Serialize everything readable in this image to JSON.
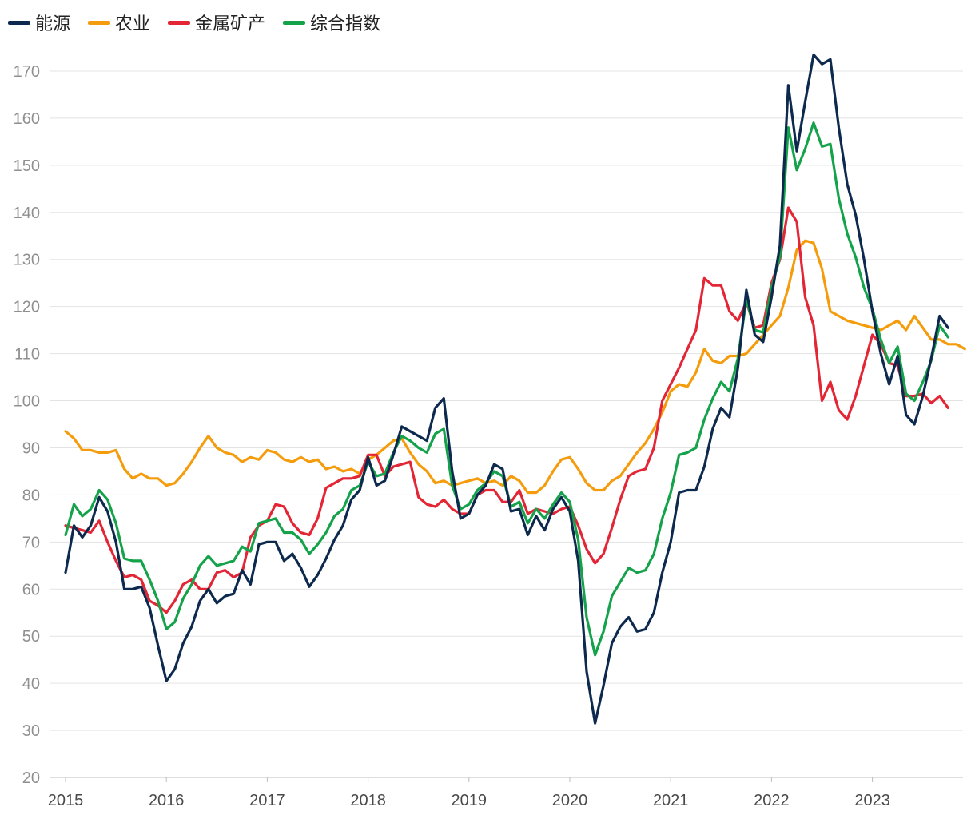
{
  "chart_data": {
    "type": "line",
    "title": "",
    "xlabel": "",
    "ylabel": "",
    "ylim": [
      20,
      175
    ],
    "yticks": [
      20,
      30,
      40,
      50,
      60,
      70,
      80,
      90,
      100,
      110,
      120,
      130,
      140,
      150,
      160,
      170
    ],
    "xticks": [
      "2015",
      "2016",
      "2017",
      "2018",
      "2019",
      "2020",
      "2021",
      "2022",
      "2023"
    ],
    "xstart": 2015,
    "points_per_year": 12,
    "grid": true,
    "legend_position": "top-left",
    "series": [
      {
        "name": "能源",
        "color": "#0d2a4e",
        "values": [
          63.5,
          73.5,
          71,
          73.5,
          79.5,
          76.5,
          70,
          60,
          60,
          60.5,
          56,
          48,
          40.5,
          43,
          48.5,
          52,
          57.5,
          60,
          57,
          58.5,
          59,
          64,
          61,
          69.5,
          70,
          70,
          66,
          67.5,
          64.5,
          60.5,
          63,
          66.5,
          70.5,
          73.5,
          79,
          81,
          88,
          82,
          83,
          88.5,
          94.5,
          93.5,
          92.5,
          91.5,
          98.5,
          100.5,
          85,
          75,
          76,
          80,
          82,
          86.5,
          85.5,
          76.5,
          77,
          71.5,
          75.5,
          72.5,
          77,
          79.5,
          76.5,
          66,
          42.5,
          31.5,
          39.5,
          48.5,
          52,
          54,
          51,
          51.5,
          55,
          63.5,
          70,
          80.5,
          81,
          81,
          86,
          94,
          98.5,
          96.5,
          107,
          123.5,
          114,
          112.5,
          122,
          133,
          167,
          153,
          163.5,
          173.5,
          171.5,
          172.5,
          158,
          146,
          139.5,
          130,
          119,
          110,
          103.5,
          109.5,
          97,
          95,
          101,
          109,
          118,
          115.5
        ]
      },
      {
        "name": "农业",
        "color": "#f59c0c",
        "values": [
          93.5,
          92,
          89.5,
          89.5,
          89,
          89,
          89.5,
          85.5,
          83.5,
          84.5,
          83.5,
          83.5,
          82,
          82.5,
          84.5,
          87,
          90,
          92.5,
          90,
          89,
          88.5,
          87,
          88,
          87.5,
          89.5,
          89,
          87.5,
          87,
          88,
          87,
          87.5,
          85.5,
          86,
          85,
          85.5,
          84.5,
          87.5,
          88.5,
          90,
          91.5,
          92,
          89,
          86.5,
          85,
          82.5,
          83,
          82,
          82.5,
          83,
          83.5,
          82.5,
          83,
          82,
          84,
          83,
          80.5,
          80.5,
          82,
          85,
          87.5,
          88,
          85.5,
          82.5,
          81,
          81,
          83,
          84,
          86.5,
          89,
          91,
          94,
          97.5,
          102,
          103.5,
          103,
          106,
          111,
          108.5,
          108,
          109.5,
          109.5,
          110,
          112,
          114,
          116,
          118,
          124,
          132,
          134,
          133.5,
          128,
          119,
          118,
          117,
          116.5,
          116,
          115.5,
          115,
          116,
          117,
          115,
          118,
          115.5,
          113,
          113,
          112,
          112,
          111
        ]
      },
      {
        "name": "金属矿产",
        "color": "#e32636",
        "values": [
          73.5,
          73,
          72.5,
          72,
          74.5,
          70,
          66,
          62.5,
          63,
          62,
          57.5,
          56.5,
          55,
          57.5,
          61,
          62,
          60,
          60,
          63.5,
          64,
          62.5,
          63.5,
          71,
          73.5,
          74.5,
          78,
          77.5,
          74,
          72,
          71.5,
          75,
          81.5,
          82.5,
          83.5,
          83.5,
          84,
          88.5,
          88.5,
          84,
          86,
          86.5,
          87,
          79.5,
          78,
          77.5,
          79,
          77,
          76,
          76,
          80,
          81,
          81,
          78.5,
          78.5,
          81,
          76,
          77,
          76.5,
          76,
          77,
          77.5,
          73.5,
          68.5,
          65.5,
          67.5,
          73,
          79,
          84,
          85,
          85.5,
          90,
          100,
          103.5,
          107,
          111,
          115,
          126,
          124.5,
          124.5,
          119,
          117,
          121,
          115.5,
          116,
          125,
          130,
          141,
          138,
          122,
          116,
          100,
          104,
          98,
          96,
          101,
          107.5,
          114,
          112,
          108,
          107.5,
          101,
          101,
          101.5,
          99.5,
          101,
          98.5
        ]
      },
      {
        "name": "综合指数",
        "color": "#14a24a",
        "values": [
          71.5,
          78,
          75.5,
          77,
          81,
          79,
          74,
          66.5,
          66,
          66,
          62,
          57.5,
          51.5,
          53,
          58,
          61,
          65,
          67,
          65,
          65.5,
          66,
          69,
          68,
          74,
          74.5,
          75,
          72,
          72,
          70.5,
          67.5,
          69.5,
          72,
          75.5,
          77,
          81,
          82,
          87,
          84,
          84.5,
          89,
          92.5,
          91.5,
          90,
          89,
          93,
          94,
          82,
          77,
          78,
          81,
          82.5,
          85,
          84,
          77.5,
          78.5,
          74,
          77,
          75,
          78,
          80.5,
          78.5,
          70.5,
          54,
          46,
          51,
          58.5,
          61.5,
          64.5,
          63.5,
          64,
          67.5,
          75,
          80.5,
          88.5,
          89,
          90,
          96,
          100.5,
          104,
          102,
          109,
          121.5,
          115,
          114.5,
          124,
          130.5,
          158,
          149,
          153.5,
          159,
          154,
          154.5,
          143,
          135.5,
          130.5,
          124,
          119.5,
          113,
          108,
          111.5,
          101.5,
          100,
          104,
          108.5,
          116,
          113.5
        ]
      }
    ]
  }
}
